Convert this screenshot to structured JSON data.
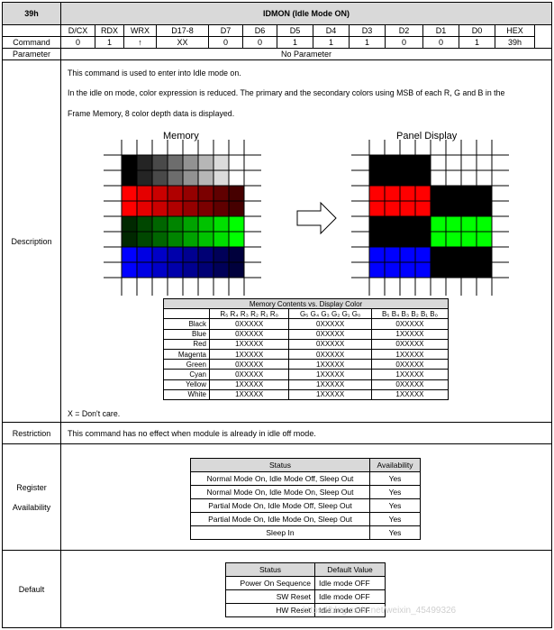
{
  "header": {
    "cmd": "39h",
    "title": "IDMON (Idle Mode ON)"
  },
  "columns": [
    "D/CX",
    "RDX",
    "WRX",
    "D17-8",
    "D7",
    "D6",
    "D5",
    "D4",
    "D3",
    "D2",
    "D1",
    "D0",
    "HEX"
  ],
  "command": {
    "label": "Command",
    "values": [
      "0",
      "1",
      "↑",
      "XX",
      "0",
      "0",
      "1",
      "1",
      "1",
      "0",
      "0",
      "1",
      "39h"
    ]
  },
  "parameter": {
    "label": "Parameter",
    "value": "No Parameter"
  },
  "description": {
    "label": "Description",
    "line1": "This command is used to enter into Idle mode on.",
    "line2": "In the idle on mode, color expression is reduced. The primary and the secondary colors using MSB of each R, G and B in the",
    "line3": "Frame Memory, 8 color depth data is displayed.",
    "memory_title": "Memory",
    "panel_title": "Panel Display",
    "table": {
      "title": "Memory Contents vs. Display Color",
      "headers": [
        "R₅ R₄ R₃ R₂ R₁ R₀",
        "G₅ G₄ G₃ G₂ G₁ G₀",
        "B₅ B₄ B₃ B₂ B₁ B₀"
      ],
      "rows": [
        {
          "name": "Black",
          "r": "0XXXXX",
          "g": "0XXXXX",
          "b": "0XXXXX"
        },
        {
          "name": "Blue",
          "r": "0XXXXX",
          "g": "0XXXXX",
          "b": "1XXXXX"
        },
        {
          "name": "Red",
          "r": "1XXXXX",
          "g": "0XXXXX",
          "b": "0XXXXX"
        },
        {
          "name": "Magenta",
          "r": "1XXXXX",
          "g": "0XXXXX",
          "b": "1XXXXX"
        },
        {
          "name": "Green",
          "r": "0XXXXX",
          "g": "1XXXXX",
          "b": "0XXXXX"
        },
        {
          "name": "Cyan",
          "r": "0XXXXX",
          "g": "1XXXXX",
          "b": "1XXXXX"
        },
        {
          "name": "Yellow",
          "r": "1XXXXX",
          "g": "1XXXXX",
          "b": "0XXXXX"
        },
        {
          "name": "White",
          "r": "1XXXXX",
          "g": "1XXXXX",
          "b": "1XXXXX"
        }
      ]
    },
    "note": "X = Don't care."
  },
  "restriction": {
    "label": "Restriction",
    "text": "This command has no effect when module is already in idle off mode."
  },
  "register": {
    "label1": "Register",
    "label2": "Availability",
    "headers": [
      "Status",
      "Availability"
    ],
    "rows": [
      {
        "status": "Normal Mode On, Idle Mode Off, Sleep Out",
        "avail": "Yes"
      },
      {
        "status": "Normal Mode On, Idle Mode On, Sleep Out",
        "avail": "Yes"
      },
      {
        "status": "Partial Mode On, Idle Mode Off, Sleep Out",
        "avail": "Yes"
      },
      {
        "status": "Partial Mode On, Idle Mode On, Sleep Out",
        "avail": "Yes"
      },
      {
        "status": "Sleep In",
        "avail": "Yes"
      }
    ]
  },
  "default": {
    "label": "Default",
    "headers": [
      "Status",
      "Default Value"
    ],
    "rows": [
      {
        "status": "Power On Sequence",
        "value": "Idle mode OFF"
      },
      {
        "status": "SW Reset",
        "value": "Idle mode OFF"
      },
      {
        "status": "HW Reset",
        "value": "Idle mode OFF"
      }
    ]
  },
  "watermark": "https://blog.csdn.net/weixin_45499326"
}
